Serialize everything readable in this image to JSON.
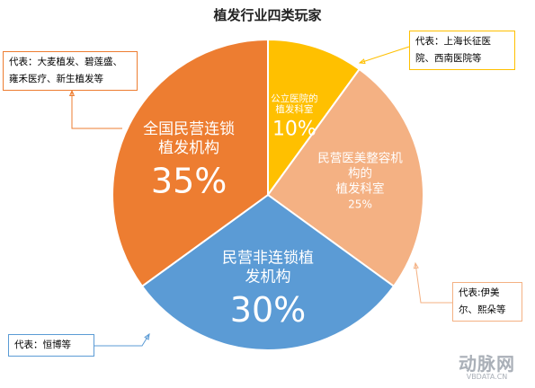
{
  "title": "植发行业四类玩家",
  "chart_data": {
    "type": "pie",
    "title": "植发行业四类玩家",
    "slices": [
      {
        "label": "公立医院的植发科室",
        "label_lines": [
          "公立医院的",
          "植发科室"
        ],
        "value": 10,
        "value_text": "10%",
        "color": "#FFC000"
      },
      {
        "label": "民营医美整容机构的植发科室",
        "label_lines": [
          "民营医美整容机",
          "构的",
          "植发科室"
        ],
        "value": 25,
        "value_text": "25%",
        "color": "#F4B183"
      },
      {
        "label": "民营非连锁植发机构",
        "label_lines": [
          "民营非连锁植",
          "发机构"
        ],
        "value": 30,
        "value_text": "30%",
        "color": "#5B9BD5"
      },
      {
        "label": "全国民营连锁植发机构",
        "label_lines": [
          "全国民营连锁",
          "植发机构"
        ],
        "value": 35,
        "value_text": "35%",
        "color": "#ED7D31"
      }
    ]
  },
  "callouts": {
    "public": {
      "lines": [
        "代表：上海长征医",
        "院、西南医院等"
      ]
    },
    "aesthetic": {
      "lines": [
        "代表:伊美",
        "尔、熙朵等"
      ]
    },
    "nonchain": {
      "lines": [
        "代表：恒博等"
      ]
    },
    "chain": {
      "lines": [
        "代表：大麦植发、碧莲盛、",
        "雍禾医疗、新生植发等"
      ]
    }
  },
  "watermark": {
    "brand": "动脉网",
    "url": "VBDATA.CN"
  }
}
